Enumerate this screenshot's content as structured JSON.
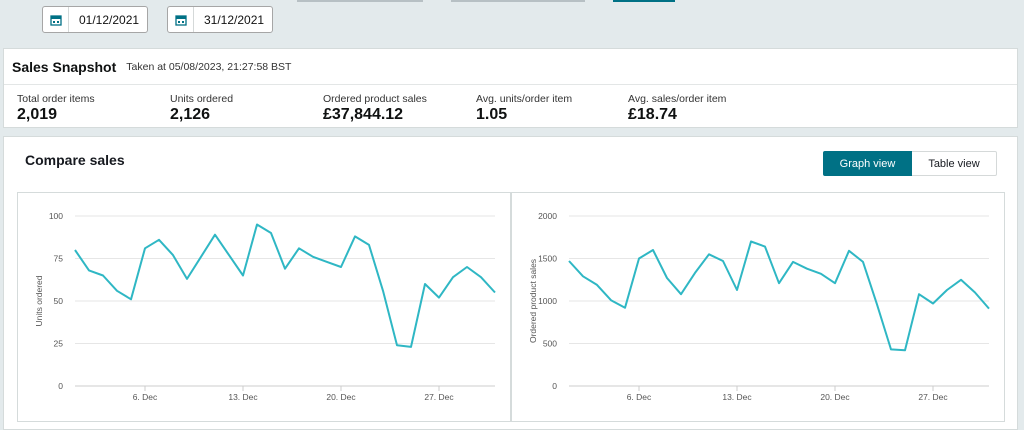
{
  "date_range": {
    "start": "01/12/2021",
    "end": "31/12/2021"
  },
  "snapshot": {
    "title": "Sales Snapshot",
    "taken": "Taken at 05/08/2023, 21:27:58 BST",
    "metrics": [
      {
        "label": "Total order items",
        "value": "2,019"
      },
      {
        "label": "Units ordered",
        "value": "2,126"
      },
      {
        "label": "Ordered product sales",
        "value": "£37,844.12"
      },
      {
        "label": "Avg. units/order item",
        "value": "1.05"
      },
      {
        "label": "Avg. sales/order item",
        "value": "£18.74"
      }
    ]
  },
  "compare": {
    "title": "Compare sales",
    "graph_view_label": "Graph view",
    "table_view_label": "Table view",
    "accent_color": "#007185",
    "line_color": "#2fb7c4"
  },
  "chart_data": [
    {
      "type": "line",
      "ylabel": "Units ordered",
      "ylim": [
        0,
        100
      ],
      "yticks": [
        "0",
        "25",
        "50",
        "75",
        "100"
      ],
      "xticks": [
        "6. Dec",
        "13. Dec",
        "20. Dec",
        "27. Dec"
      ],
      "xtick_days": [
        6,
        13,
        20,
        27
      ],
      "x": [
        1,
        2,
        3,
        4,
        5,
        6,
        7,
        8,
        9,
        10,
        11,
        12,
        13,
        14,
        15,
        16,
        17,
        18,
        19,
        20,
        21,
        22,
        23,
        24,
        25,
        26,
        27,
        28,
        29,
        30,
        31
      ],
      "values": [
        80,
        68,
        65,
        56,
        51,
        81,
        86,
        77,
        63,
        76,
        89,
        77,
        65,
        95,
        90,
        69,
        81,
        76,
        73,
        70,
        88,
        83,
        56,
        24,
        23,
        60,
        52,
        64,
        70,
        64,
        55
      ]
    },
    {
      "type": "line",
      "ylabel": "Ordered product sales",
      "ylim": [
        0,
        2000
      ],
      "yticks": [
        "0",
        "500",
        "1000",
        "1500",
        "2000"
      ],
      "xticks": [
        "6. Dec",
        "13. Dec",
        "20. Dec",
        "27. Dec"
      ],
      "xtick_days": [
        6,
        13,
        20,
        27
      ],
      "x": [
        1,
        2,
        3,
        4,
        5,
        6,
        7,
        8,
        9,
        10,
        11,
        12,
        13,
        14,
        15,
        16,
        17,
        18,
        19,
        20,
        21,
        22,
        23,
        24,
        25,
        26,
        27,
        28,
        29,
        30,
        31
      ],
      "values": [
        1470,
        1290,
        1190,
        1010,
        920,
        1500,
        1600,
        1270,
        1080,
        1330,
        1550,
        1470,
        1130,
        1700,
        1640,
        1210,
        1460,
        1380,
        1320,
        1210,
        1590,
        1460,
        960,
        430,
        420,
        1080,
        970,
        1130,
        1250,
        1100,
        910
      ]
    }
  ]
}
